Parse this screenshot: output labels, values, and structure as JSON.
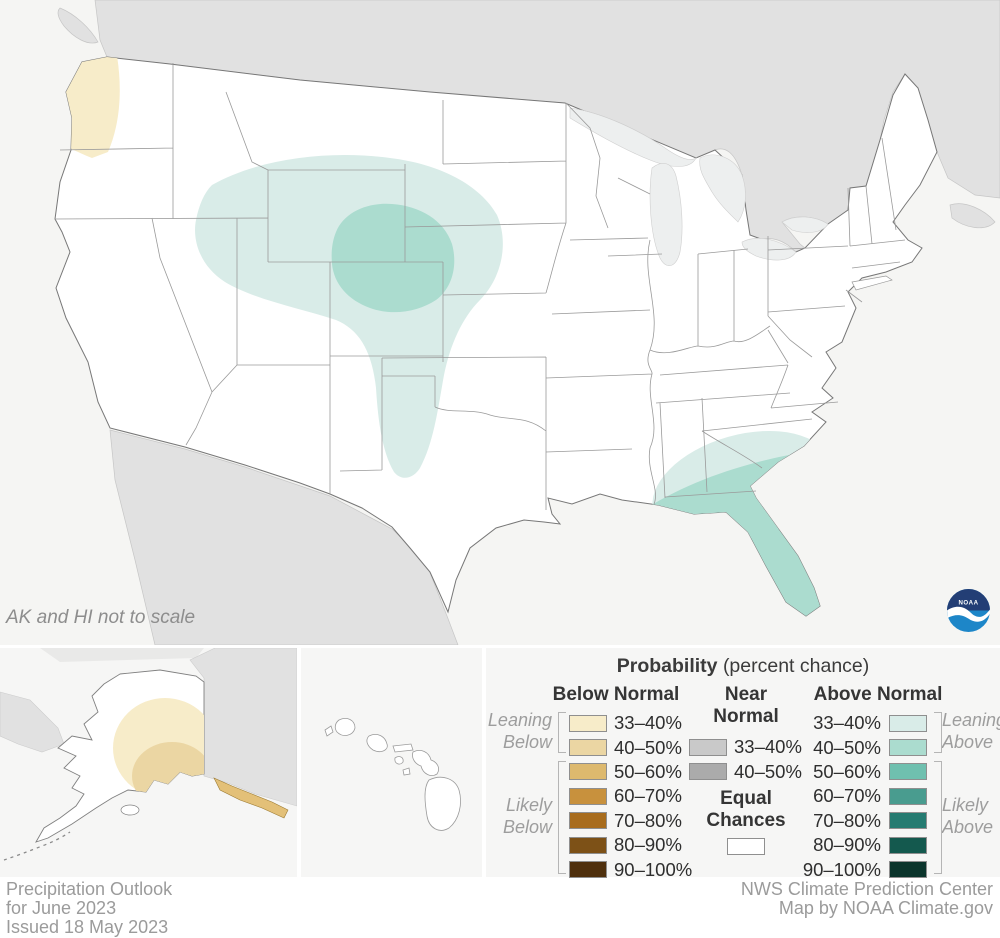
{
  "map": {
    "note": "AK and HI not to scale",
    "logo_text": "NOAA"
  },
  "legend": {
    "title": "Probability",
    "title_suffix": "(percent chance)",
    "below": {
      "header": "Below Normal",
      "leaning": [
        "Leaning",
        "Below"
      ],
      "likely": [
        "Likely",
        "Below"
      ],
      "rows": [
        {
          "range": "33–40%",
          "color": "#f7ecc9"
        },
        {
          "range": "40–50%",
          "color": "#ebd6a3"
        },
        {
          "range": "50–60%",
          "color": "#ddb96e"
        },
        {
          "range": "60–70%",
          "color": "#c8913d"
        },
        {
          "range": "70–80%",
          "color": "#a86c1d"
        },
        {
          "range": "80–90%",
          "color": "#7d5117"
        },
        {
          "range": "90–100%",
          "color": "#4f300d"
        }
      ]
    },
    "near": {
      "header_line1": "Near",
      "header_line2": "Normal",
      "rows": [
        {
          "range": "33–40%",
          "color": "#c9c9c9"
        },
        {
          "range": "40–50%",
          "color": "#ababab"
        }
      ],
      "equal_line1": "Equal",
      "equal_line2": "Chances",
      "equal_color": "#ffffff"
    },
    "above": {
      "header": "Above Normal",
      "leaning": [
        "Leaning",
        "Above"
      ],
      "likely": [
        "Likely",
        "Above"
      ],
      "rows": [
        {
          "range": "33–40%",
          "color": "#d9ece8"
        },
        {
          "range": "40–50%",
          "color": "#abdccf"
        },
        {
          "range": "50–60%",
          "color": "#6fc0af"
        },
        {
          "range": "60–70%",
          "color": "#499c8f"
        },
        {
          "range": "70–80%",
          "color": "#257b71"
        },
        {
          "range": "80–90%",
          "color": "#14594e"
        },
        {
          "range": "90–100%",
          "color": "#0b352c"
        }
      ]
    }
  },
  "footer": {
    "left_lines": [
      "Precipitation Outlook",
      "for June 2023",
      "Issued 18 May 2023"
    ],
    "right_lines": [
      "NWS Climate Prediction Center",
      "Map by NOAA Climate.gov"
    ]
  },
  "map_colors": {
    "ocean": "#f5f5f3",
    "foreign_land": "#e1e1e1",
    "us_fill": "#ffffff",
    "lake_fill": "#edefef",
    "state_border": "#9a9a9a",
    "below_33_40": "#f7ecc9",
    "below_40_50": "#ebd6a3",
    "above_33_40": "#d9ece8",
    "above_40_50": "#abdccf",
    "ak_archipelago": "#e3c078",
    "noaa_navy": "#233e75",
    "noaa_blue": "#1d86c8"
  }
}
